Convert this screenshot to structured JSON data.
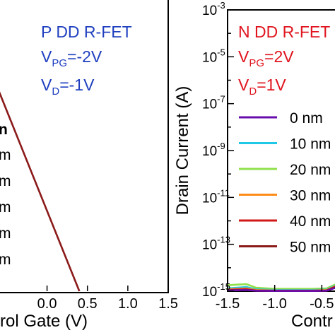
{
  "chart_data": [
    {
      "type": "line",
      "panel": "left",
      "title_lines": [
        "P DD R-FET",
        "V_PG=-2V",
        "V_D=-1V"
      ],
      "annotation_color": "#1f3fbf",
      "xlabel_visible": "rol Gate (V)",
      "xlim": [
        -0.6,
        1.5
      ],
      "xticks": [
        0.0,
        0.5,
        1.0,
        1.5
      ],
      "xtick_labels": [
        "0.0",
        "0.5",
        "1.0",
        "1.5"
      ],
      "legend_fragments": [
        "m",
        "m",
        "m",
        "m",
        "m"
      ],
      "legend_partial_top": "n",
      "series": [
        {
          "color": "#8b1a1a",
          "x": [
            -0.62,
            0.4
          ],
          "y_frac": [
            0.3,
            1.0
          ]
        }
      ]
    },
    {
      "type": "line",
      "panel": "right",
      "title_lines": [
        "N DD R-FET",
        "V_PG=2V",
        "V_D=1V"
      ],
      "annotation_color": "#e0141e",
      "ylabel": "Drain Current (A)",
      "xlabel_visible": "Contr",
      "yscale": "log",
      "ylim": [
        1e-15,
        0.001
      ],
      "yticks": [
        {
          "base": "10",
          "exp": "-3",
          "value": -3
        },
        {
          "base": "10",
          "exp": "-5",
          "value": -5
        },
        {
          "base": "10",
          "exp": "-7",
          "value": -7
        },
        {
          "base": "10",
          "exp": "-9",
          "value": -9
        },
        {
          "base": "10",
          "exp": "-11",
          "value": -11
        },
        {
          "base": "10",
          "exp": "-13",
          "value": -13
        },
        {
          "base": "10",
          "exp": "-15",
          "value": -15
        }
      ],
      "xlim": [
        -1.5,
        -0.3
      ],
      "xticks": [
        -1.5,
        -1.0,
        -0.5
      ],
      "xtick_labels": [
        "-1.5",
        "-1.0",
        "-0.5"
      ],
      "legend": [
        {
          "label": "0 nm",
          "color": "#6a0dad"
        },
        {
          "label": "10 nm",
          "color": "#1ec8e6"
        },
        {
          "label": "20 nm",
          "color": "#8fe04a"
        },
        {
          "label": "30 nm",
          "color": "#ff8c1a"
        },
        {
          "label": "40 nm",
          "color": "#d01818"
        },
        {
          "label": "50 nm",
          "color": "#8b1a1a"
        }
      ],
      "series": [
        {
          "color": "#8fe04a",
          "x": [
            -1.5,
            -1.4,
            -1.3,
            -1.2,
            -1.0,
            -0.8,
            -0.6,
            -0.45,
            -0.35
          ],
          "y": [
            -14.75,
            -14.72,
            -14.7,
            -14.85,
            -14.9,
            -14.9,
            -14.9,
            -14.88,
            -14.7
          ]
        },
        {
          "color": "#1ec8e6",
          "x": [
            -1.5,
            -1.4,
            -1.3,
            -1.2,
            -1.0,
            -0.8,
            -0.6,
            -0.45,
            -0.35
          ],
          "y": [
            -14.88,
            -14.85,
            -14.82,
            -14.92,
            -14.95,
            -14.95,
            -14.95,
            -14.93,
            -14.75
          ]
        },
        {
          "color": "#ff8c1a",
          "x": [
            -1.5,
            -1.4,
            -1.3,
            -1.2,
            -1.0,
            -0.8,
            -0.6,
            -0.45,
            -0.35
          ],
          "y": [
            -14.92,
            -14.9,
            -14.88,
            -14.95,
            -14.97,
            -14.97,
            -14.97,
            -14.95,
            -14.78
          ]
        },
        {
          "color": "#d01818",
          "x": [
            -1.5,
            -1.4,
            -1.3,
            -1.2,
            -1.0,
            -0.8,
            -0.6,
            -0.45,
            -0.35
          ],
          "y": [
            -14.95,
            -14.93,
            -14.92,
            -14.97,
            -14.98,
            -14.98,
            -14.98,
            -14.97,
            -14.8
          ]
        },
        {
          "color": "#8b1a1a",
          "x": [
            -1.5,
            -1.4,
            -1.3,
            -1.2,
            -1.0,
            -0.8,
            -0.6,
            -0.45,
            -0.35
          ],
          "y": [
            -14.96,
            -14.95,
            -14.94,
            -14.98,
            -14.99,
            -14.99,
            -14.99,
            -14.98,
            -14.82
          ]
        },
        {
          "color": "#6a0dad",
          "x": [
            -1.5,
            -1.4,
            -1.3,
            -1.2,
            -1.0,
            -0.8,
            -0.6,
            -0.45,
            -0.35
          ],
          "y": [
            -14.97,
            -14.96,
            -14.95,
            -14.98,
            -14.99,
            -14.99,
            -14.99,
            -14.98,
            -14.85
          ]
        }
      ]
    }
  ]
}
